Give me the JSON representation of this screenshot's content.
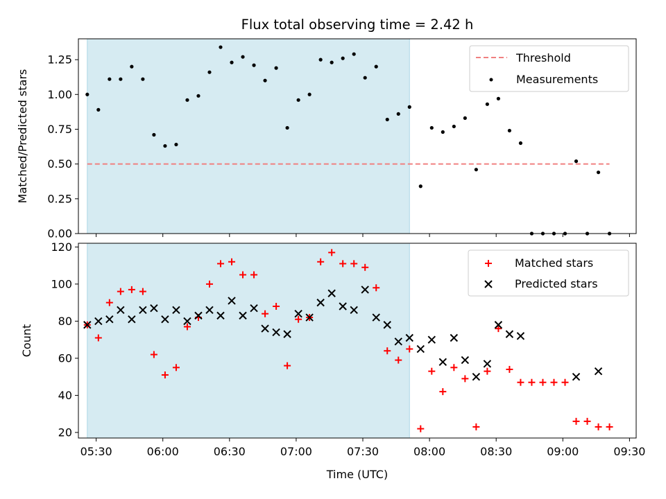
{
  "chart_data": [
    {
      "type": "scatter",
      "title": "Flux total observing time = 2.42 h",
      "ylabel": "Matched/Predicted stars",
      "xlabel": "",
      "ylim": [
        0,
        1.4
      ],
      "yticks": [
        "0.00",
        "0.25",
        "0.50",
        "0.75",
        "1.00",
        "1.25"
      ],
      "grid": false,
      "legend_position": "top-right",
      "shaded_span": {
        "start": "05:26",
        "end": "07:51",
        "color": "#add8e6"
      },
      "threshold": {
        "name": "Threshold",
        "value": 0.5,
        "from": "05:26",
        "to": "09:21",
        "color": "#f08080"
      },
      "series": [
        {
          "name": "Measurements",
          "color": "#000000",
          "marker": "dot",
          "x": [
            "05:26",
            "05:31",
            "05:36",
            "05:41",
            "05:46",
            "05:51",
            "05:56",
            "06:01",
            "06:06",
            "06:11",
            "06:16",
            "06:21",
            "06:26",
            "06:31",
            "06:36",
            "06:41",
            "06:46",
            "06:51",
            "06:56",
            "07:01",
            "07:06",
            "07:11",
            "07:16",
            "07:21",
            "07:26",
            "07:31",
            "07:36",
            "07:41",
            "07:46",
            "07:51",
            "07:56",
            "08:01",
            "08:06",
            "08:11",
            "08:16",
            "08:21",
            "08:26",
            "08:31",
            "08:36",
            "08:41",
            "08:46",
            "08:51",
            "08:56",
            "09:01",
            "09:06",
            "09:11",
            "09:16",
            "09:21"
          ],
          "y": [
            1.0,
            0.89,
            1.11,
            1.11,
            1.2,
            1.11,
            0.71,
            0.63,
            0.64,
            0.96,
            0.99,
            1.16,
            1.34,
            1.23,
            1.27,
            1.21,
            1.1,
            1.19,
            0.76,
            0.96,
            1.0,
            1.25,
            1.23,
            1.26,
            1.29,
            1.12,
            1.2,
            0.82,
            0.86,
            0.91,
            0.34,
            0.76,
            0.73,
            0.77,
            0.83,
            0.46,
            0.93,
            0.97,
            0.74,
            0.65,
            0.0,
            0.0,
            0.0,
            0.0,
            0.52,
            0.0,
            0.44,
            0.0
          ]
        }
      ]
    },
    {
      "type": "scatter",
      "title": "",
      "ylabel": "Count",
      "xlabel": "Time (UTC)",
      "ylim": [
        17,
        122
      ],
      "yticks": [
        "20",
        "40",
        "60",
        "80",
        "100",
        "120"
      ],
      "xticks": [
        "05:30",
        "06:00",
        "06:30",
        "07:00",
        "07:30",
        "08:00",
        "08:30",
        "09:00",
        "09:30"
      ],
      "xlim": [
        "05:22",
        "09:33"
      ],
      "grid": false,
      "legend_position": "top-right",
      "shaded_span": {
        "start": "05:26",
        "end": "07:51",
        "color": "#add8e6"
      },
      "series": [
        {
          "name": "Matched stars",
          "color": "#ff0000",
          "marker": "plus",
          "x": [
            "05:26",
            "05:31",
            "05:36",
            "05:41",
            "05:46",
            "05:51",
            "05:56",
            "06:01",
            "06:06",
            "06:11",
            "06:16",
            "06:21",
            "06:26",
            "06:31",
            "06:36",
            "06:41",
            "06:46",
            "06:51",
            "06:56",
            "07:01",
            "07:06",
            "07:11",
            "07:16",
            "07:21",
            "07:26",
            "07:31",
            "07:36",
            "07:41",
            "07:46",
            "07:51",
            "07:56",
            "08:01",
            "08:06",
            "08:11",
            "08:16",
            "08:21",
            "08:26",
            "08:31",
            "08:36",
            "08:41",
            "08:46",
            "08:51",
            "08:56",
            "09:01",
            "09:06",
            "09:11",
            "09:16",
            "09:21"
          ],
          "y": [
            78,
            71,
            90,
            96,
            97,
            96,
            62,
            51,
            55,
            77,
            82,
            100,
            111,
            112,
            105,
            105,
            84,
            88,
            56,
            81,
            82,
            112,
            117,
            111,
            111,
            109,
            98,
            64,
            59,
            65,
            22,
            53,
            42,
            55,
            49,
            23,
            53,
            76,
            54,
            47,
            47,
            47,
            47,
            47,
            26,
            26,
            23,
            23
          ]
        },
        {
          "name": "Predicted stars",
          "color": "#000000",
          "marker": "x",
          "x": [
            "05:26",
            "05:31",
            "05:36",
            "05:41",
            "05:46",
            "05:51",
            "05:56",
            "06:01",
            "06:06",
            "06:11",
            "06:16",
            "06:21",
            "06:26",
            "06:31",
            "06:36",
            "06:41",
            "06:46",
            "06:51",
            "06:56",
            "07:01",
            "07:06",
            "07:11",
            "07:16",
            "07:21",
            "07:26",
            "07:31",
            "07:36",
            "07:41",
            "07:46",
            "07:51",
            "07:56",
            "08:01",
            "08:06",
            "08:11",
            "08:16",
            "08:21",
            "08:26",
            "08:31",
            "08:36",
            "08:41",
            "09:06",
            "09:16"
          ],
          "y": [
            78,
            80,
            81,
            86,
            81,
            86,
            87,
            81,
            86,
            80,
            83,
            86,
            83,
            91,
            83,
            87,
            76,
            74,
            73,
            84,
            82,
            90,
            95,
            88,
            86,
            97,
            82,
            78,
            69,
            71,
            65,
            70,
            58,
            71,
            59,
            50,
            57,
            78,
            73,
            72,
            50,
            53
          ]
        }
      ]
    }
  ]
}
